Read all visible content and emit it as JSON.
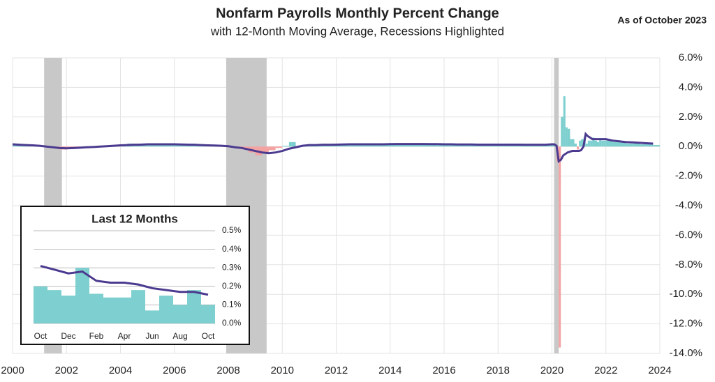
{
  "chart_data": [
    {
      "type": "bar_line",
      "title": "Nonfarm Payrolls Monthly Percent Change",
      "subtitle": "with 12-Month Moving Average, Recessions Highlighted",
      "note": "As of October 2023",
      "x": [
        2000,
        2000.25,
        2000.5,
        2000.75,
        2001,
        2001.25,
        2001.5,
        2001.75,
        2002,
        2002.25,
        2002.5,
        2002.75,
        2003,
        2003.25,
        2003.5,
        2003.75,
        2004,
        2004.25,
        2004.5,
        2004.75,
        2005,
        2005.25,
        2005.5,
        2005.75,
        2006,
        2006.25,
        2006.5,
        2006.75,
        2007,
        2007.25,
        2007.5,
        2007.75,
        2008,
        2008.25,
        2008.5,
        2008.75,
        2009,
        2009.25,
        2009.5,
        2009.75,
        2010,
        2010.25,
        2010.5,
        2010.75,
        2011,
        2011.25,
        2011.5,
        2011.75,
        2012,
        2012.25,
        2012.5,
        2012.75,
        2013,
        2013.25,
        2013.5,
        2013.75,
        2014,
        2014.25,
        2014.5,
        2014.75,
        2015,
        2015.25,
        2015.5,
        2015.75,
        2016,
        2016.25,
        2016.5,
        2016.75,
        2017,
        2017.25,
        2017.5,
        2017.75,
        2018,
        2018.25,
        2018.5,
        2018.75,
        2019,
        2019.25,
        2019.5,
        2019.75,
        2020,
        2020.08,
        2020.17,
        2020.25,
        2020.33,
        2020.42,
        2020.5,
        2020.58,
        2020.67,
        2020.75,
        2020.83,
        2020.92,
        2021,
        2021.08,
        2021.17,
        2021.25,
        2021.33,
        2021.42,
        2021.5,
        2021.58,
        2021.67,
        2021.75,
        2021.83,
        2021.92,
        2022,
        2022.25,
        2022.5,
        2022.75,
        2023,
        2023.25,
        2023.5,
        2023.75
      ],
      "xlim": [
        2000,
        2024
      ],
      "xticks": [
        2000,
        2002,
        2004,
        2006,
        2008,
        2010,
        2012,
        2014,
        2016,
        2018,
        2020,
        2022,
        2024
      ],
      "ylim": [
        -14,
        6
      ],
      "yticks": [
        {
          "value": 6,
          "label": "6.0%"
        },
        {
          "value": 4,
          "label": "4.0%"
        },
        {
          "value": 2,
          "label": "2.0%"
        },
        {
          "value": 0,
          "label": "0.0%"
        },
        {
          "value": -2,
          "label": "-2.0%"
        },
        {
          "value": -4,
          "label": "-4.0%"
        },
        {
          "value": -6,
          "label": "-6.0%"
        },
        {
          "value": -8,
          "label": "-8.0%"
        },
        {
          "value": -10,
          "label": "-10.0%"
        },
        {
          "value": -12,
          "label": "-12.0%"
        },
        {
          "value": -14,
          "label": "-14.0%"
        }
      ],
      "grid": true,
      "recession_color": "#c8c8c8",
      "recessions": [
        [
          2001.17,
          2001.83
        ],
        [
          2007.92,
          2009.42
        ],
        [
          2020.08,
          2020.25
        ]
      ],
      "bars": {
        "positive_color": "#7ecfcf",
        "negative_color": "#f4a3a3",
        "values": [
          0.2,
          0.1,
          0.05,
          0.1,
          0,
          -0.05,
          -0.1,
          -0.2,
          -0.1,
          -0.05,
          0,
          0,
          -0.05,
          0,
          0.05,
          0.1,
          0.1,
          0.2,
          0.1,
          0.15,
          0.15,
          0.15,
          0.15,
          0.15,
          0.15,
          0.1,
          0.1,
          0.1,
          0.1,
          0.1,
          0.05,
          0.05,
          -0.05,
          -0.1,
          -0.2,
          -0.4,
          -0.6,
          -0.4,
          -0.25,
          -0.1,
          0.05,
          0.3,
          0,
          0.1,
          0.15,
          0.1,
          0.1,
          0.15,
          0.2,
          0.1,
          0.1,
          0.15,
          0.15,
          0.15,
          0.15,
          0.15,
          0.15,
          0.2,
          0.15,
          0.2,
          0.15,
          0.15,
          0.15,
          0.15,
          0.15,
          0.1,
          0.15,
          0.1,
          0.15,
          0.1,
          0.1,
          0.15,
          0.15,
          0.15,
          0.15,
          0.1,
          0.1,
          0.1,
          0.15,
          0.1,
          0.2,
          0.2,
          -1.0,
          -13.6,
          2.0,
          3.4,
          1.3,
          1.2,
          0.5,
          0.5,
          0.2,
          -0.2,
          0.4,
          0.5,
          0.6,
          0.2,
          0.4,
          0.4,
          0.6,
          0.4,
          0.3,
          0.5,
          0.4,
          0.4,
          0.4,
          0.3,
          0.3,
          0.2,
          0.2,
          0.15,
          0.15,
          0.1
        ]
      },
      "line": {
        "color": "#4b3a8f",
        "values": [
          0.15,
          0.12,
          0.1,
          0.08,
          0.05,
          0,
          -0.05,
          -0.1,
          -0.12,
          -0.1,
          -0.08,
          -0.05,
          -0.03,
          0,
          0.02,
          0.05,
          0.08,
          0.1,
          0.12,
          0.13,
          0.15,
          0.15,
          0.15,
          0.15,
          0.15,
          0.14,
          0.13,
          0.12,
          0.1,
          0.08,
          0.07,
          0.05,
          0.02,
          -0.05,
          -0.1,
          -0.2,
          -0.3,
          -0.4,
          -0.45,
          -0.4,
          -0.3,
          -0.15,
          -0.05,
          0.05,
          0.1,
          0.1,
          0.12,
          0.12,
          0.13,
          0.14,
          0.15,
          0.15,
          0.15,
          0.15,
          0.15,
          0.15,
          0.16,
          0.17,
          0.17,
          0.17,
          0.17,
          0.17,
          0.16,
          0.16,
          0.15,
          0.15,
          0.14,
          0.14,
          0.14,
          0.13,
          0.13,
          0.13,
          0.13,
          0.13,
          0.13,
          0.13,
          0.12,
          0.12,
          0.12,
          0.12,
          0.15,
          0.15,
          0.05,
          -1.0,
          -0.9,
          -0.6,
          -0.5,
          -0.4,
          -0.35,
          -0.3,
          -0.3,
          -0.3,
          -0.3,
          -0.25,
          0.0,
          0.85,
          0.7,
          0.6,
          0.5,
          0.5,
          0.5,
          0.5,
          0.5,
          0.5,
          0.5,
          0.4,
          0.35,
          0.3,
          0.28,
          0.25,
          0.22,
          0.2
        ]
      }
    },
    {
      "type": "bar_line",
      "title": "Last 12 Months",
      "categories": [
        "Oct",
        null,
        "Dec",
        null,
        "Feb",
        null,
        "Apr",
        null,
        "Jun",
        null,
        "Aug",
        null,
        "Oct"
      ],
      "ylim": [
        0,
        0.5
      ],
      "yticks": [
        {
          "value": 0,
          "label": "0.0%"
        },
        {
          "value": 0.1,
          "label": "0.1%"
        },
        {
          "value": 0.2,
          "label": "0.2%"
        },
        {
          "value": 0.3,
          "label": "0.3%"
        },
        {
          "value": 0.4,
          "label": "0.4%"
        },
        {
          "value": 0.5,
          "label": "0.5%"
        }
      ],
      "grid": true,
      "bars": {
        "color": "#7ecfcf",
        "values": [
          0.2,
          0.18,
          0.15,
          0.3,
          0.16,
          0.14,
          0.14,
          0.18,
          0.07,
          0.15,
          0.1,
          0.18,
          0.1
        ]
      },
      "line": {
        "color": "#4b3a8f",
        "values": [
          0.31,
          0.29,
          0.27,
          0.28,
          0.23,
          0.22,
          0.22,
          0.21,
          0.19,
          0.18,
          0.17,
          0.17,
          0.155
        ]
      }
    }
  ]
}
